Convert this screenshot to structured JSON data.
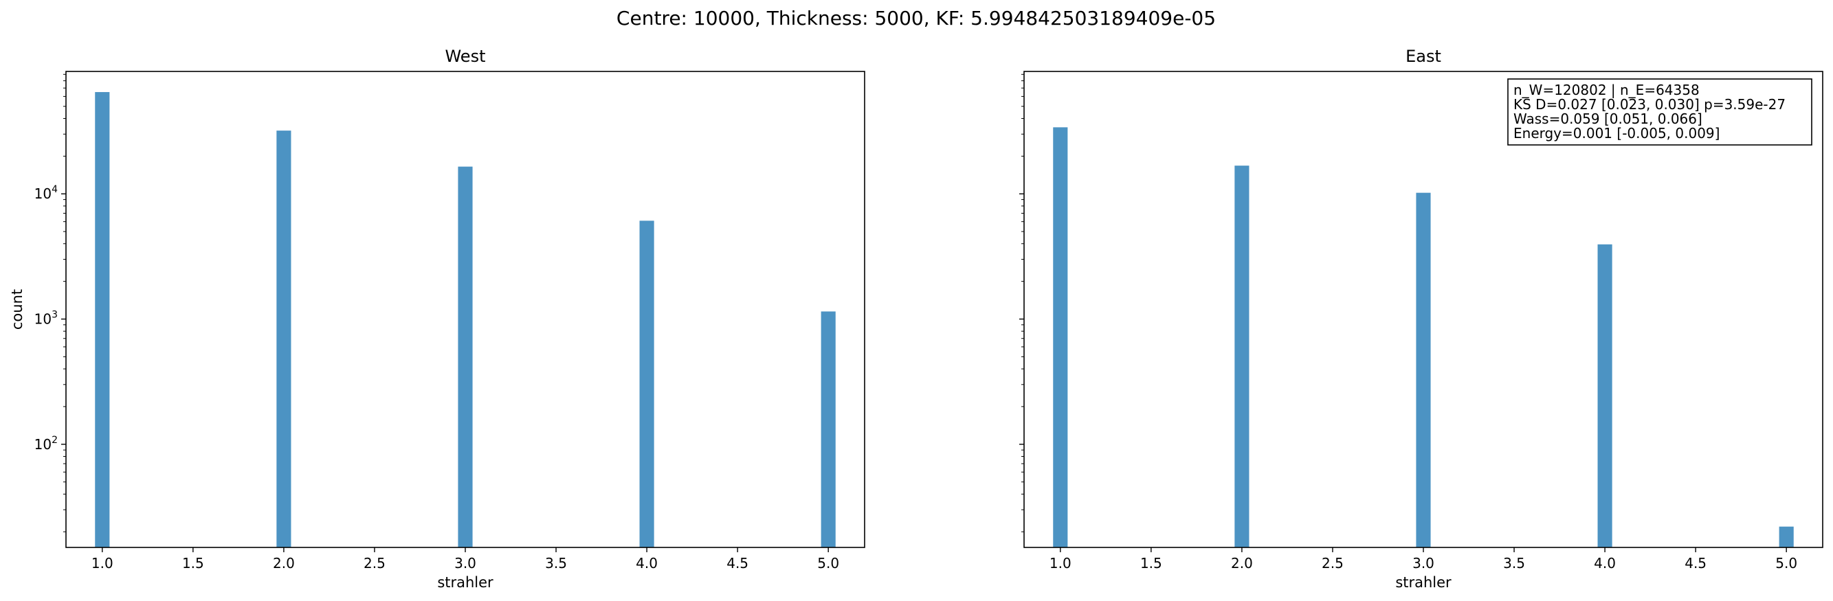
{
  "figure": {
    "suptitle": "Centre: 10000, Thickness: 5000, KF: 5.994842503189409e-05"
  },
  "colors": {
    "bar": "#4c93c3",
    "axis": "#000000",
    "background": "#ffffff"
  },
  "chart_data": [
    {
      "type": "bar",
      "title": "West",
      "xlabel": "strahler",
      "ylabel": "count",
      "yscale": "log",
      "xlim": [
        0.8,
        5.2
      ],
      "ylim": [
        15,
        95000
      ],
      "xticks": [
        1.0,
        1.5,
        2.0,
        2.5,
        3.0,
        3.5,
        4.0,
        4.5,
        5.0
      ],
      "xtick_labels": [
        "1.0",
        "1.5",
        "2.0",
        "2.5",
        "3.0",
        "3.5",
        "4.0",
        "4.5",
        "5.0"
      ],
      "ytick_powers": [
        2,
        3,
        4
      ],
      "categories": [
        1,
        2,
        3,
        4,
        5
      ],
      "values": [
        65000,
        32000,
        16500,
        6100,
        1150
      ],
      "annotation": []
    },
    {
      "type": "bar",
      "title": "East",
      "xlabel": "strahler",
      "ylabel": "",
      "yscale": "log",
      "xlim": [
        0.8,
        5.2
      ],
      "ylim": [
        15,
        95000
      ],
      "xticks": [
        1.0,
        1.5,
        2.0,
        2.5,
        3.0,
        3.5,
        4.0,
        4.5,
        5.0
      ],
      "xtick_labels": [
        "1.0",
        "1.5",
        "2.0",
        "2.5",
        "3.0",
        "3.5",
        "4.0",
        "4.5",
        "5.0"
      ],
      "ytick_powers": [
        2,
        3,
        4
      ],
      "categories": [
        1,
        2,
        3,
        4,
        5
      ],
      "values": [
        34000,
        16800,
        10200,
        3950,
        22
      ],
      "legend_placement": "top-right",
      "annotation": [
        "n_W=120802 | n_E=64358",
        "KS D=0.027 [0.023, 0.030]  p=3.59e-27",
        "Wass=0.059 [0.051, 0.066]",
        "Energy=0.001 [-0.005, 0.009]"
      ]
    }
  ]
}
